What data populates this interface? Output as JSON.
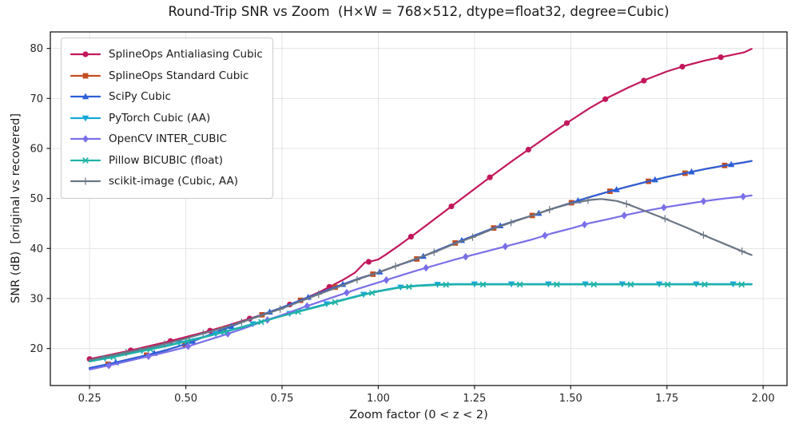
{
  "chart_data": {
    "type": "line",
    "title": "Round-Trip SNR vs Zoom  (H×W = 768×512, dtype=float32, degree=Cubic)",
    "xlabel": "Zoom factor (0 < z < 2)",
    "ylabel": "SNR (dB)  [original vs recovered]",
    "xlim": [
      0.148,
      2.062
    ],
    "ylim": [
      12.6,
      83.3
    ],
    "x_ticks": [
      0.25,
      0.5,
      0.75,
      1.0,
      1.25,
      1.5,
      1.75,
      2.0
    ],
    "y_ticks": [
      20,
      30,
      40,
      50,
      60,
      70,
      80
    ],
    "grid": true,
    "legend_position": "upper left",
    "background_color": "#ffffff",
    "grid_color": "#e4e4e4",
    "spine_color": "#1a1a1a",
    "tick_text_color": "#262626",
    "series": [
      {
        "name": "SplineOps Antialiasing Cubic",
        "color": "#C2185B",
        "marker": "circle",
        "points": [
          [
            0.25,
            17.9
          ],
          [
            0.3,
            18.7
          ],
          [
            0.35,
            19.5
          ],
          [
            0.4,
            20.4
          ],
          [
            0.45,
            21.3
          ],
          [
            0.5,
            22.3
          ],
          [
            0.55,
            23.3
          ],
          [
            0.6,
            24.4
          ],
          [
            0.65,
            25.6
          ],
          [
            0.7,
            26.8
          ],
          [
            0.75,
            28.2
          ],
          [
            0.8,
            29.7
          ],
          [
            0.85,
            31.4
          ],
          [
            0.88,
            32.6
          ],
          [
            0.91,
            33.8
          ],
          [
            0.94,
            35.2
          ],
          [
            0.965,
            37.2
          ],
          [
            0.98,
            37.4
          ],
          [
            1.0,
            37.8
          ],
          [
            1.02,
            38.8
          ],
          [
            1.05,
            40.4
          ],
          [
            1.1,
            43.2
          ],
          [
            1.15,
            46.1
          ],
          [
            1.2,
            49.0
          ],
          [
            1.25,
            51.9
          ],
          [
            1.3,
            54.8
          ],
          [
            1.35,
            57.6
          ],
          [
            1.4,
            60.3
          ],
          [
            1.45,
            63.0
          ],
          [
            1.5,
            65.6
          ],
          [
            1.55,
            68.1
          ],
          [
            1.6,
            70.3
          ],
          [
            1.65,
            72.2
          ],
          [
            1.7,
            73.9
          ],
          [
            1.75,
            75.4
          ],
          [
            1.8,
            76.6
          ],
          [
            1.85,
            77.6
          ],
          [
            1.9,
            78.4
          ],
          [
            1.95,
            79.2
          ],
          [
            1.97,
            79.9
          ]
        ],
        "marker_z": [
          0.25,
          0.357,
          0.46,
          0.563,
          0.666,
          0.77,
          0.873,
          0.975,
          1.085,
          1.19,
          1.29,
          1.39,
          1.49,
          1.59,
          1.69,
          1.79,
          1.89
        ]
      },
      {
        "name": "SplineOps Standard Cubic",
        "color": "#C44E20",
        "marker": "square",
        "points": [
          [
            0.25,
            16.1
          ],
          [
            0.3,
            16.9
          ],
          [
            0.35,
            17.8
          ],
          [
            0.4,
            18.7
          ],
          [
            0.45,
            19.7
          ],
          [
            0.5,
            20.9
          ],
          [
            0.55,
            22.4
          ],
          [
            0.6,
            23.9
          ],
          [
            0.65,
            25.4
          ],
          [
            0.7,
            26.8
          ],
          [
            0.75,
            28.2
          ],
          [
            0.8,
            29.7
          ],
          [
            0.85,
            31.2
          ],
          [
            0.9,
            32.6
          ],
          [
            0.95,
            34.0
          ],
          [
            1.0,
            35.2
          ],
          [
            1.05,
            36.6
          ],
          [
            1.1,
            37.9
          ],
          [
            1.15,
            39.5
          ],
          [
            1.2,
            41.1
          ],
          [
            1.25,
            42.6
          ],
          [
            1.3,
            44.1
          ],
          [
            1.35,
            45.4
          ],
          [
            1.4,
            46.6
          ],
          [
            1.45,
            47.9
          ],
          [
            1.5,
            49.1
          ],
          [
            1.55,
            50.3
          ],
          [
            1.6,
            51.4
          ],
          [
            1.65,
            52.4
          ],
          [
            1.7,
            53.4
          ],
          [
            1.75,
            54.3
          ],
          [
            1.8,
            55.1
          ],
          [
            1.85,
            55.9
          ],
          [
            1.9,
            56.6
          ],
          [
            1.95,
            57.2
          ],
          [
            1.97,
            57.5
          ]
        ],
        "marker_z": [
          0.298,
          0.398,
          0.498,
          0.598,
          0.698,
          0.798,
          0.888,
          0.986,
          1.1,
          1.2,
          1.3,
          1.4,
          1.502,
          1.602,
          1.702,
          1.797,
          1.9
        ]
      },
      {
        "name": "SciPy Cubic",
        "color": "#2B5FD9",
        "marker": "triangle-up",
        "points": [
          [
            0.25,
            16.1
          ],
          [
            0.3,
            16.9
          ],
          [
            0.35,
            17.8
          ],
          [
            0.4,
            18.7
          ],
          [
            0.45,
            19.7
          ],
          [
            0.5,
            20.9
          ],
          [
            0.55,
            22.4
          ],
          [
            0.6,
            23.9
          ],
          [
            0.65,
            25.4
          ],
          [
            0.7,
            26.8
          ],
          [
            0.75,
            28.2
          ],
          [
            0.8,
            29.7
          ],
          [
            0.85,
            31.2
          ],
          [
            0.9,
            32.6
          ],
          [
            0.95,
            34.0
          ],
          [
            1.0,
            35.2
          ],
          [
            1.05,
            36.6
          ],
          [
            1.1,
            37.9
          ],
          [
            1.15,
            39.5
          ],
          [
            1.2,
            41.1
          ],
          [
            1.25,
            42.6
          ],
          [
            1.3,
            44.1
          ],
          [
            1.35,
            45.4
          ],
          [
            1.4,
            46.6
          ],
          [
            1.45,
            47.9
          ],
          [
            1.5,
            49.1
          ],
          [
            1.55,
            50.3
          ],
          [
            1.6,
            51.4
          ],
          [
            1.65,
            52.4
          ],
          [
            1.7,
            53.4
          ],
          [
            1.75,
            54.3
          ],
          [
            1.8,
            55.1
          ],
          [
            1.85,
            55.9
          ],
          [
            1.9,
            56.6
          ],
          [
            1.95,
            57.2
          ],
          [
            1.97,
            57.5
          ]
        ],
        "marker_z": [
          0.318,
          0.418,
          0.518,
          0.618,
          0.718,
          0.818,
          0.908,
          1.004,
          1.117,
          1.217,
          1.317,
          1.417,
          1.519,
          1.619,
          1.719,
          1.814,
          1.917
        ]
      },
      {
        "name": "PyTorch Cubic (AA)",
        "color": "#17A8D8",
        "marker": "triangle-down",
        "points": [
          [
            0.25,
            17.5
          ],
          [
            0.3,
            18.2
          ],
          [
            0.35,
            19.0
          ],
          [
            0.4,
            19.8
          ],
          [
            0.45,
            20.6
          ],
          [
            0.5,
            21.5
          ],
          [
            0.55,
            22.4
          ],
          [
            0.6,
            23.4
          ],
          [
            0.65,
            24.4
          ],
          [
            0.7,
            25.5
          ],
          [
            0.75,
            26.6
          ],
          [
            0.8,
            27.6
          ],
          [
            0.85,
            28.6
          ],
          [
            0.9,
            29.6
          ],
          [
            0.95,
            30.6
          ],
          [
            1.0,
            31.5
          ],
          [
            1.05,
            32.2
          ],
          [
            1.1,
            32.6
          ],
          [
            1.15,
            32.8
          ],
          [
            1.2,
            32.9
          ],
          [
            1.3,
            32.9
          ],
          [
            1.4,
            32.9
          ],
          [
            1.5,
            32.9
          ],
          [
            1.6,
            32.9
          ],
          [
            1.7,
            32.9
          ],
          [
            1.8,
            32.9
          ],
          [
            1.9,
            32.9
          ],
          [
            1.97,
            32.9
          ]
        ],
        "marker_z": [
          0.29,
          0.386,
          0.482,
          0.578,
          0.674,
          0.77,
          0.866,
          0.962,
          1.058,
          1.154,
          1.25,
          1.346,
          1.442,
          1.538,
          1.634,
          1.73,
          1.826,
          1.922
        ]
      },
      {
        "name": "OpenCV INTER_CUBIC",
        "color": "#7A6FE8",
        "marker": "diamond",
        "points": [
          [
            0.25,
            15.8
          ],
          [
            0.3,
            16.6
          ],
          [
            0.35,
            17.5
          ],
          [
            0.4,
            18.4
          ],
          [
            0.45,
            19.3
          ],
          [
            0.5,
            20.3
          ],
          [
            0.55,
            21.5
          ],
          [
            0.6,
            22.7
          ],
          [
            0.65,
            24.0
          ],
          [
            0.7,
            25.4
          ],
          [
            0.75,
            26.7
          ],
          [
            0.8,
            28.1
          ],
          [
            0.85,
            29.4
          ],
          [
            0.9,
            30.7
          ],
          [
            0.95,
            32.0
          ],
          [
            1.0,
            33.2
          ],
          [
            1.05,
            34.4
          ],
          [
            1.1,
            35.6
          ],
          [
            1.15,
            36.7
          ],
          [
            1.2,
            37.8
          ],
          [
            1.25,
            38.8
          ],
          [
            1.3,
            39.8
          ],
          [
            1.35,
            40.8
          ],
          [
            1.4,
            41.8
          ],
          [
            1.45,
            43.0
          ],
          [
            1.5,
            44.0
          ],
          [
            1.55,
            45.1
          ],
          [
            1.6,
            45.9
          ],
          [
            1.65,
            46.8
          ],
          [
            1.7,
            47.6
          ],
          [
            1.75,
            48.3
          ],
          [
            1.8,
            48.9
          ],
          [
            1.85,
            49.5
          ],
          [
            1.9,
            50.0
          ],
          [
            1.95,
            50.4
          ],
          [
            1.97,
            50.6
          ]
        ],
        "marker_z": [
          0.3,
          0.403,
          0.506,
          0.609,
          0.712,
          0.815,
          0.918,
          1.021,
          1.124,
          1.227,
          1.33,
          1.433,
          1.536,
          1.639,
          1.742,
          1.845,
          1.948
        ]
      },
      {
        "name": "Pillow BICUBIC (float)",
        "color": "#1FB2A6",
        "marker": "x",
        "points": [
          [
            0.25,
            17.4
          ],
          [
            0.3,
            18.1
          ],
          [
            0.35,
            18.9
          ],
          [
            0.4,
            19.7
          ],
          [
            0.45,
            20.5
          ],
          [
            0.5,
            21.4
          ],
          [
            0.55,
            22.3
          ],
          [
            0.6,
            23.3
          ],
          [
            0.65,
            24.3
          ],
          [
            0.7,
            25.4
          ],
          [
            0.75,
            26.5
          ],
          [
            0.8,
            27.5
          ],
          [
            0.85,
            28.5
          ],
          [
            0.9,
            29.5
          ],
          [
            0.95,
            30.5
          ],
          [
            1.0,
            31.4
          ],
          [
            1.05,
            32.1
          ],
          [
            1.1,
            32.5
          ],
          [
            1.15,
            32.7
          ],
          [
            1.2,
            32.8
          ],
          [
            1.3,
            32.8
          ],
          [
            1.4,
            32.8
          ],
          [
            1.5,
            32.8
          ],
          [
            1.6,
            32.8
          ],
          [
            1.7,
            32.8
          ],
          [
            1.8,
            32.8
          ],
          [
            1.9,
            32.8
          ],
          [
            1.97,
            32.8
          ]
        ],
        "marker_z": [
          0.312,
          0.408,
          0.504,
          0.6,
          0.696,
          0.792,
          0.888,
          0.984,
          1.08,
          1.176,
          1.272,
          1.368,
          1.464,
          1.56,
          1.656,
          1.752,
          1.848,
          1.944
        ]
      },
      {
        "name": "scikit-image (Cubic, AA)",
        "color": "#6B7684",
        "marker": "plus",
        "points": [
          [
            0.25,
            17.7
          ],
          [
            0.3,
            18.5
          ],
          [
            0.35,
            19.3
          ],
          [
            0.4,
            20.1
          ],
          [
            0.45,
            21.0
          ],
          [
            0.5,
            22.0
          ],
          [
            0.55,
            23.1
          ],
          [
            0.6,
            24.2
          ],
          [
            0.65,
            25.4
          ],
          [
            0.7,
            26.7
          ],
          [
            0.75,
            28.0
          ],
          [
            0.8,
            29.5
          ],
          [
            0.85,
            31.0
          ],
          [
            0.9,
            32.4
          ],
          [
            0.95,
            33.9
          ],
          [
            1.0,
            35.2
          ],
          [
            1.05,
            36.6
          ],
          [
            1.1,
            38.0
          ],
          [
            1.15,
            39.4
          ],
          [
            1.2,
            41.0
          ],
          [
            1.25,
            42.4
          ],
          [
            1.3,
            44.0
          ],
          [
            1.35,
            45.3
          ],
          [
            1.4,
            46.6
          ],
          [
            1.45,
            47.9
          ],
          [
            1.5,
            49.0
          ],
          [
            1.55,
            49.7
          ],
          [
            1.58,
            49.9
          ],
          [
            1.62,
            49.5
          ],
          [
            1.65,
            48.8
          ],
          [
            1.7,
            47.3
          ],
          [
            1.75,
            45.8
          ],
          [
            1.8,
            44.2
          ],
          [
            1.85,
            42.5
          ],
          [
            1.9,
            40.9
          ],
          [
            1.95,
            39.3
          ],
          [
            1.97,
            38.7
          ]
        ],
        "marker_z": [
          0.345,
          0.445,
          0.545,
          0.645,
          0.745,
          0.845,
          0.945,
          1.045,
          1.145,
          1.245,
          1.345,
          1.445,
          1.545,
          1.645,
          1.745,
          1.845,
          1.945
        ]
      }
    ]
  }
}
